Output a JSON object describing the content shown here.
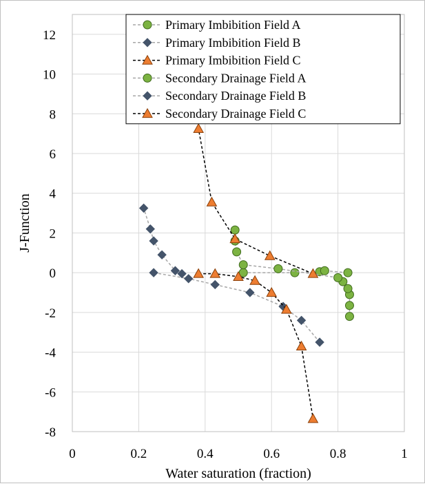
{
  "chart_data": {
    "type": "scatter",
    "title": "",
    "xlabel": "Water saturation (fraction)",
    "ylabel": "J-Function",
    "xlim": [
      0,
      1
    ],
    "ylim": [
      -8,
      13
    ],
    "x_ticks": [
      "0",
      "0.2",
      "0.4",
      "0.6",
      "0.8",
      "1"
    ],
    "y_ticks": [
      "12",
      "10",
      "8",
      "6",
      "4",
      "2",
      "0",
      "-2",
      "-4",
      "-6",
      "-8"
    ],
    "grid": true,
    "legend_position": "top-right",
    "series": [
      {
        "name": "Primary Imbibition Field A",
        "marker": "circle",
        "marker_color": "#7cb342",
        "line_color": "#a6a6a6",
        "line_style": "dashed",
        "points": [
          [
            0.515,
            0.0
          ],
          [
            0.67,
            0.0
          ],
          [
            0.745,
            0.05
          ],
          [
            0.76,
            0.1
          ],
          [
            0.83,
            0.0
          ]
        ]
      },
      {
        "name": "Primary Imbibition Field B",
        "marker": "diamond",
        "marker_color": "#44546a",
        "line_color": "#a6a6a6",
        "line_style": "dashed",
        "points": [
          [
            0.245,
            0.0
          ],
          [
            0.35,
            -0.3
          ],
          [
            0.43,
            -0.6
          ],
          [
            0.535,
            -1.0
          ],
          [
            0.635,
            -1.7
          ],
          [
            0.69,
            -2.4
          ],
          [
            0.745,
            -3.5
          ]
        ]
      },
      {
        "name": "Primary Imbibition Field C",
        "marker": "triangle",
        "marker_color": "#ed7d31",
        "line_color": "#000000",
        "line_style": "dashed",
        "points": [
          [
            0.38,
            -0.05
          ],
          [
            0.43,
            -0.05
          ],
          [
            0.5,
            -0.2
          ],
          [
            0.55,
            -0.4
          ],
          [
            0.6,
            -1.0
          ],
          [
            0.645,
            -1.85
          ],
          [
            0.69,
            -3.7
          ],
          [
            0.725,
            -7.35
          ]
        ]
      },
      {
        "name": "Secondary Drainage Field A",
        "marker": "circle",
        "marker_color": "#7cb342",
        "line_color": "#a6a6a6",
        "line_style": "dashed",
        "points": [
          [
            0.835,
            -2.2
          ],
          [
            0.835,
            -1.65
          ],
          [
            0.835,
            -1.1
          ],
          [
            0.83,
            -0.8
          ],
          [
            0.815,
            -0.45
          ],
          [
            0.8,
            -0.25
          ],
          [
            0.62,
            0.2
          ],
          [
            0.515,
            0.4
          ],
          [
            0.495,
            1.05
          ],
          [
            0.49,
            1.6
          ],
          [
            0.49,
            2.15
          ]
        ]
      },
      {
        "name": "Secondary Drainage Field B",
        "marker": "diamond",
        "marker_color": "#44546a",
        "line_color": "#a6a6a6",
        "line_style": "dashed",
        "points": [
          [
            0.33,
            -0.05
          ],
          [
            0.31,
            0.1
          ],
          [
            0.27,
            0.9
          ],
          [
            0.245,
            1.6
          ],
          [
            0.235,
            2.2
          ],
          [
            0.215,
            3.25
          ]
        ]
      },
      {
        "name": "Secondary Drainage Field C",
        "marker": "triangle",
        "marker_color": "#ed7d31",
        "line_color": "#000000",
        "line_style": "dashed",
        "points": [
          [
            0.725,
            -0.05
          ],
          [
            0.595,
            0.85
          ],
          [
            0.49,
            1.7
          ],
          [
            0.42,
            3.55
          ],
          [
            0.38,
            7.25
          ]
        ]
      }
    ]
  }
}
